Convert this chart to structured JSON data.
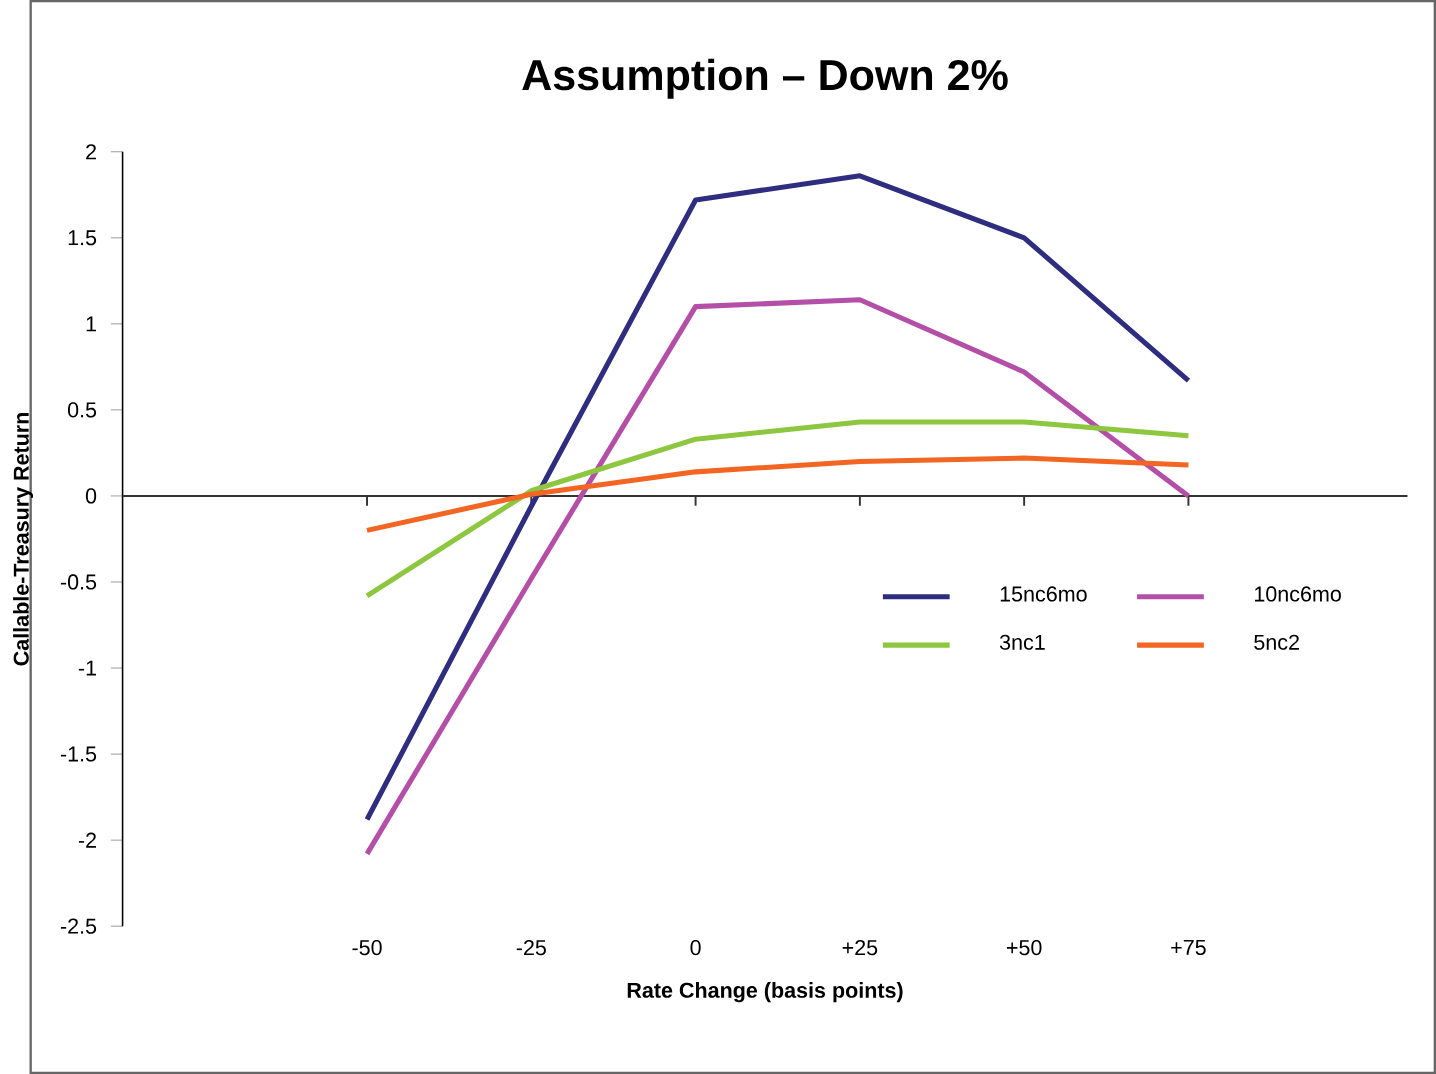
{
  "chart_data": {
    "type": "line",
    "title": "Assumption – Down 2%",
    "xlabel": "Rate Change (basis points)",
    "ylabel": "Callable-Treasury Return",
    "categories": [
      "-50",
      "-25",
      "0",
      "+25",
      "+50",
      "+75"
    ],
    "series": [
      {
        "name": "15nc6mo",
        "color": "#2e2d7f",
        "values": [
          -1.88,
          -0.06,
          1.72,
          1.86,
          1.5,
          0.67
        ]
      },
      {
        "name": "10nc6mo",
        "color": "#b44fa8",
        "values": [
          -2.08,
          -0.48,
          1.1,
          1.14,
          0.72,
          0.0
        ]
      },
      {
        "name": "3nc1",
        "color": "#8dc63f",
        "values": [
          -0.58,
          0.03,
          0.33,
          0.43,
          0.43,
          0.35
        ]
      },
      {
        "name": "5nc2",
        "color": "#f26522",
        "values": [
          -0.2,
          0.01,
          0.14,
          0.2,
          0.22,
          0.18
        ]
      }
    ],
    "ylim": [
      -2.5,
      2
    ],
    "yticks": [
      -2.5,
      -2,
      -1.5,
      -1,
      -0.5,
      0,
      0.5,
      1,
      1.5,
      2
    ],
    "legend": "right",
    "marker": "none",
    "line_style": "solid"
  }
}
